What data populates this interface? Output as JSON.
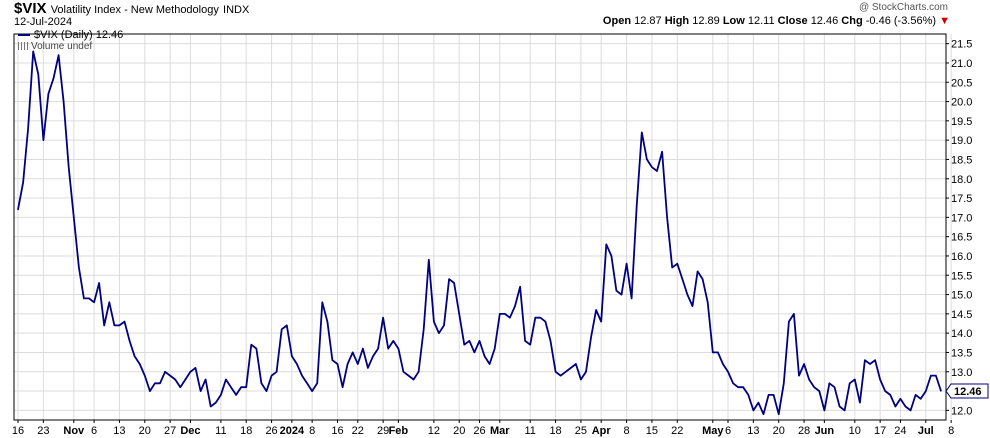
{
  "header": {
    "symbol": "$VIX",
    "description": "Volatility Index - New Methodology",
    "exchange": "INDX",
    "date": "12-Jul-2024",
    "watermark": "@ StockCharts.com",
    "open_label": "Open",
    "open": "12.87",
    "high_label": "High",
    "high": "12.89",
    "low_label": "Low",
    "low": "12.11",
    "close_label": "Close",
    "close": "12.46",
    "chg_label": "Chg",
    "chg": "-0.46 (-3.56%)",
    "chg_color": "#cc0000"
  },
  "legend": {
    "series_label": "$VIX (Daily) 12.46",
    "volume_label": "Volume undef"
  },
  "chart_data": {
    "type": "line",
    "title": "$VIX Volatility Index - New Methodology INDX",
    "yaxis_side": "right",
    "ylim": [
      11.75,
      21.75
    ],
    "yticks": [
      12.0,
      12.5,
      13.0,
      13.5,
      14.0,
      14.5,
      15.0,
      15.5,
      16.0,
      16.5,
      17.0,
      17.5,
      18.0,
      18.5,
      19.0,
      19.5,
      20.0,
      20.5,
      21.0,
      21.5
    ],
    "grid": true,
    "line_color": "#000080",
    "last_value_label": "12.46",
    "x_tick_labels": [
      {
        "label": "16",
        "i": 0
      },
      {
        "label": "23",
        "i": 5
      },
      {
        "label": "Nov",
        "i": 11
      },
      {
        "label": "6",
        "i": 15
      },
      {
        "label": "13",
        "i": 20
      },
      {
        "label": "20",
        "i": 25
      },
      {
        "label": "27",
        "i": 30
      },
      {
        "label": "Dec",
        "i": 34
      },
      {
        "label": "11",
        "i": 40
      },
      {
        "label": "18",
        "i": 45
      },
      {
        "label": "26",
        "i": 50
      },
      {
        "label": "2024",
        "i": 54
      },
      {
        "label": "8",
        "i": 58
      },
      {
        "label": "16",
        "i": 63
      },
      {
        "label": "22",
        "i": 67
      },
      {
        "label": "29",
        "i": 72
      },
      {
        "label": "Feb",
        "i": 75
      },
      {
        "label": "12",
        "i": 82
      },
      {
        "label": "20",
        "i": 87
      },
      {
        "label": "26",
        "i": 91
      },
      {
        "label": "Mar",
        "i": 95
      },
      {
        "label": "11",
        "i": 101
      },
      {
        "label": "18",
        "i": 106
      },
      {
        "label": "25",
        "i": 111
      },
      {
        "label": "Apr",
        "i": 115
      },
      {
        "label": "8",
        "i": 120
      },
      {
        "label": "15",
        "i": 125
      },
      {
        "label": "22",
        "i": 130
      },
      {
        "label": "May",
        "i": 137
      },
      {
        "label": "6",
        "i": 140
      },
      {
        "label": "13",
        "i": 145
      },
      {
        "label": "20",
        "i": 150
      },
      {
        "label": "28",
        "i": 155
      },
      {
        "label": "Jun",
        "i": 159
      },
      {
        "label": "10",
        "i": 165
      },
      {
        "label": "17",
        "i": 170
      },
      {
        "label": "24",
        "i": 174
      },
      {
        "label": "Jul",
        "i": 179
      },
      {
        "label": "8",
        "i": 184
      }
    ],
    "series": [
      {
        "values": [
          17.2,
          17.9,
          19.3,
          21.3,
          20.7,
          19.0,
          20.2,
          20.6,
          21.2,
          20.0,
          18.3,
          17.0,
          15.7,
          14.9,
          14.9,
          14.8,
          15.3,
          14.2,
          14.8,
          14.2,
          14.2,
          14.3,
          13.8,
          13.4,
          13.2,
          12.9,
          12.5,
          12.7,
          12.7,
          13.0,
          12.9,
          12.8,
          12.6,
          12.8,
          13.0,
          13.1,
          12.5,
          12.8,
          12.1,
          12.2,
          12.4,
          12.8,
          12.6,
          12.4,
          12.6,
          12.6,
          13.7,
          13.6,
          12.7,
          12.5,
          12.9,
          13.0,
          14.1,
          14.2,
          13.4,
          13.2,
          12.9,
          12.7,
          12.5,
          12.7,
          14.8,
          14.3,
          13.3,
          13.2,
          12.6,
          13.2,
          13.5,
          13.2,
          13.6,
          13.1,
          13.4,
          13.6,
          14.4,
          13.6,
          13.8,
          13.6,
          13.0,
          12.9,
          12.8,
          13.0,
          14.1,
          15.9,
          14.3,
          14.0,
          14.2,
          15.4,
          15.3,
          14.5,
          13.7,
          13.8,
          13.5,
          13.8,
          13.4,
          13.2,
          13.6,
          14.5,
          14.5,
          14.4,
          14.7,
          15.2,
          13.8,
          13.7,
          14.4,
          14.4,
          14.3,
          13.8,
          13.0,
          12.9,
          13.0,
          13.1,
          13.2,
          12.8,
          13.0,
          13.9,
          14.6,
          14.3,
          16.3,
          16.0,
          15.1,
          15.0,
          15.8,
          14.9,
          17.3,
          19.2,
          18.5,
          18.3,
          18.2,
          18.7,
          17.0,
          15.7,
          15.8,
          15.4,
          15.0,
          14.7,
          15.6,
          15.4,
          14.8,
          13.5,
          13.5,
          13.2,
          13.0,
          12.7,
          12.6,
          12.6,
          12.4,
          12.0,
          12.2,
          11.9,
          12.4,
          12.4,
          11.9,
          12.7,
          14.3,
          14.5,
          12.9,
          13.2,
          12.8,
          12.6,
          12.5,
          12.0,
          12.7,
          12.6,
          12.1,
          12.0,
          12.7,
          12.8,
          12.2,
          13.3,
          13.2,
          13.3,
          12.8,
          12.5,
          12.4,
          12.1,
          12.3,
          12.1,
          12.0,
          12.4,
          12.3,
          12.5,
          12.9,
          12.9,
          12.5
        ]
      }
    ]
  }
}
